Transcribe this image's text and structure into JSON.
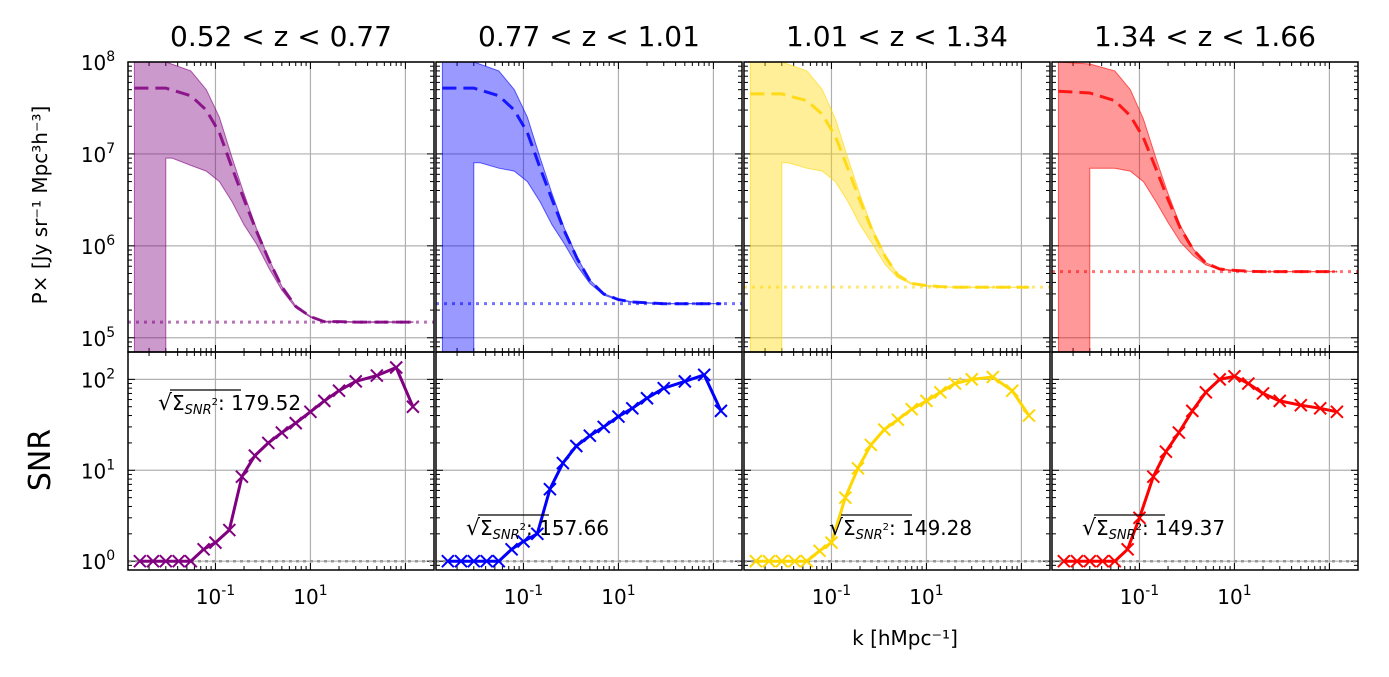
{
  "figure": {
    "ylabel_top": "P× [Jy sr⁻¹ Mpc³h⁻³]",
    "ylabel_bottom": "SNR",
    "xlabel": "k [hMpc⁻¹]"
  },
  "chart_data": [
    {
      "type": "line",
      "panel": "power-spectrum",
      "title": "0.52 < z < 0.77",
      "color": "#800080",
      "xscale": "log",
      "yscale": "log",
      "xlim": [
        0.012,
        20
      ],
      "ylim": [
        70000,
        100000000
      ],
      "x_tick_labels": [
        "10^-1",
        "10^1"
      ],
      "y_tick_labels": [
        "10^5",
        "10^6",
        "10^7",
        "10^8"
      ],
      "grid": true,
      "series": [
        {
          "role": "model-dashed",
          "x": [
            0.014,
            0.03,
            0.055,
            0.08,
            0.11,
            0.15,
            0.2,
            0.27,
            0.37,
            0.5,
            0.7,
            1.0,
            1.4,
            2.0,
            3.0,
            5.0,
            8.0,
            12.0
          ],
          "y": [
            52000000,
            52000000,
            43000000,
            30000000,
            17000000,
            7000000,
            3200000,
            1450000,
            680000,
            360000,
            220000,
            170000,
            150000,
            150000,
            148000,
            148000,
            148000,
            148000
          ]
        },
        {
          "role": "band-upper",
          "x": [
            0.014,
            0.03,
            0.055,
            0.08,
            0.11,
            0.15,
            0.2,
            0.27,
            0.37,
            0.5,
            0.7,
            1.0,
            1.4,
            2.0,
            3.0,
            5.0,
            8.0,
            12.0
          ],
          "y": [
            100000000,
            100000000,
            80000000,
            50000000,
            25000000,
            9000000,
            3700000,
            1550000,
            700000,
            365000,
            222000,
            171000,
            151000,
            151000,
            149000,
            149000,
            149000,
            149000
          ]
        },
        {
          "role": "band-lower",
          "x": [
            0.014,
            0.03,
            0.03,
            0.035,
            0.055,
            0.08,
            0.11,
            0.15,
            0.2,
            0.27,
            0.37,
            0.5,
            0.7,
            1.0,
            1.4,
            2.0,
            3.0,
            5.0,
            8.0,
            12.0
          ],
          "y": [
            70000,
            70000,
            9000000,
            9000000,
            7500000,
            6500000,
            5000000,
            3000000,
            1700000,
            1050000,
            560000,
            330000,
            212000,
            167000,
            148000,
            148000,
            147000,
            147000,
            147000,
            147000
          ]
        },
        {
          "role": "noise-dotted",
          "x": [
            0.014,
            12.0
          ],
          "y": [
            148000,
            148000
          ]
        }
      ]
    },
    {
      "type": "line",
      "panel": "power-spectrum",
      "title": "0.77 < z < 1.01",
      "color": "#0000FF",
      "xscale": "log",
      "yscale": "log",
      "xlim": [
        0.012,
        20
      ],
      "ylim": [
        70000,
        100000000
      ],
      "x_tick_labels": [
        "10^-1",
        "10^1"
      ],
      "grid": true,
      "series": [
        {
          "role": "model-dashed",
          "x": [
            0.014,
            0.03,
            0.055,
            0.08,
            0.11,
            0.15,
            0.2,
            0.27,
            0.37,
            0.5,
            0.7,
            1.0,
            1.4,
            2.0,
            3.0,
            5.0,
            8.0,
            12.0
          ],
          "y": [
            52000000,
            52000000,
            43000000,
            30000000,
            17000000,
            7000000,
            3200000,
            1450000,
            720000,
            420000,
            300000,
            260000,
            245000,
            240000,
            235000,
            235000,
            235000,
            235000
          ]
        },
        {
          "role": "band-upper",
          "x": [
            0.014,
            0.03,
            0.055,
            0.08,
            0.11,
            0.15,
            0.2,
            0.27,
            0.37,
            0.5,
            0.7,
            1.0,
            1.4,
            2.0,
            3.0,
            5.0,
            8.0,
            12.0
          ],
          "y": [
            100000000,
            100000000,
            80000000,
            50000000,
            25000000,
            9000000,
            3700000,
            1550000,
            740000,
            425000,
            302000,
            262000,
            246000,
            241000,
            236000,
            236000,
            236000,
            236000
          ]
        },
        {
          "role": "band-lower",
          "x": [
            0.014,
            0.03,
            0.03,
            0.035,
            0.055,
            0.08,
            0.11,
            0.15,
            0.2,
            0.27,
            0.37,
            0.5,
            0.7,
            1.0,
            1.4,
            2.0,
            3.0,
            5.0,
            8.0,
            12.0
          ],
          "y": [
            70000,
            70000,
            8000000,
            8000000,
            7000000,
            6500000,
            5000000,
            3000000,
            1700000,
            1050000,
            600000,
            390000,
            292000,
            256000,
            243000,
            238000,
            234000,
            234000,
            234000,
            234000
          ]
        },
        {
          "role": "noise-dotted",
          "x": [
            0.014,
            12.0
          ],
          "y": [
            235000,
            235000
          ]
        }
      ]
    },
    {
      "type": "line",
      "panel": "power-spectrum",
      "title": "1.01 < z < 1.34",
      "color": "#FFD700",
      "xscale": "log",
      "yscale": "log",
      "xlim": [
        0.012,
        20
      ],
      "ylim": [
        70000,
        100000000
      ],
      "x_tick_labels": [
        "10^-1",
        "10^1"
      ],
      "grid": true,
      "series": [
        {
          "role": "model-dashed",
          "x": [
            0.014,
            0.03,
            0.055,
            0.08,
            0.11,
            0.15,
            0.2,
            0.27,
            0.37,
            0.5,
            0.7,
            1.0,
            1.4,
            2.0,
            3.0,
            5.0,
            8.0,
            12.0
          ],
          "y": [
            45000000,
            45000000,
            38000000,
            27000000,
            15500000,
            6800000,
            3100000,
            1450000,
            760000,
            480000,
            390000,
            370000,
            360000,
            355000,
            355000,
            355000,
            355000,
            355000
          ]
        },
        {
          "role": "band-upper",
          "x": [
            0.014,
            0.03,
            0.055,
            0.08,
            0.11,
            0.15,
            0.2,
            0.27,
            0.37,
            0.5,
            0.7,
            1.0,
            1.4,
            2.0,
            3.0,
            5.0,
            8.0,
            12.0
          ],
          "y": [
            100000000,
            100000000,
            80000000,
            50000000,
            24000000,
            8800000,
            3600000,
            1550000,
            780000,
            485000,
            392000,
            372000,
            361000,
            356000,
            356000,
            356000,
            356000,
            356000
          ]
        },
        {
          "role": "band-lower",
          "x": [
            0.014,
            0.03,
            0.03,
            0.035,
            0.055,
            0.08,
            0.11,
            0.15,
            0.2,
            0.27,
            0.37,
            0.5,
            0.7,
            1.0,
            1.4,
            2.0,
            3.0,
            5.0,
            8.0,
            12.0
          ],
          "y": [
            70000,
            70000,
            8000000,
            8000000,
            7000000,
            6500000,
            5000000,
            3000000,
            1700000,
            1050000,
            620000,
            450000,
            382000,
            366000,
            358000,
            353000,
            353000,
            353000,
            353000,
            353000
          ]
        },
        {
          "role": "noise-dotted",
          "x": [
            0.014,
            12.0
          ],
          "y": [
            355000,
            355000
          ]
        }
      ]
    },
    {
      "type": "line",
      "panel": "power-spectrum",
      "title": "1.34 < z < 1.66",
      "color": "#FF0000",
      "xscale": "log",
      "yscale": "log",
      "xlim": [
        0.012,
        20
      ],
      "ylim": [
        70000,
        100000000
      ],
      "x_tick_labels": [
        "10^-1",
        "10^1"
      ],
      "grid": true,
      "series": [
        {
          "role": "model-dashed",
          "x": [
            0.014,
            0.03,
            0.055,
            0.08,
            0.11,
            0.15,
            0.2,
            0.27,
            0.37,
            0.5,
            0.7,
            1.0,
            1.4,
            2.0,
            3.0,
            5.0,
            8.0,
            12.0
          ],
          "y": [
            48000000,
            46000000,
            38000000,
            26000000,
            15000000,
            6800000,
            3200000,
            1550000,
            900000,
            650000,
            560000,
            540000,
            530000,
            525000,
            525000,
            525000,
            525000,
            525000
          ]
        },
        {
          "role": "band-upper",
          "x": [
            0.014,
            0.03,
            0.055,
            0.08,
            0.11,
            0.15,
            0.2,
            0.27,
            0.37,
            0.5,
            0.7,
            1.0,
            1.4,
            2.0,
            3.0,
            5.0,
            8.0,
            12.0
          ],
          "y": [
            100000000,
            95000000,
            80000000,
            50000000,
            24000000,
            8800000,
            3700000,
            1650000,
            920000,
            655000,
            562000,
            542000,
            531000,
            526000,
            526000,
            526000,
            526000,
            526000
          ]
        },
        {
          "role": "band-lower",
          "x": [
            0.014,
            0.03,
            0.03,
            0.035,
            0.055,
            0.08,
            0.11,
            0.15,
            0.2,
            0.27,
            0.37,
            0.5,
            0.7,
            1.0,
            1.4,
            2.0,
            3.0,
            5.0,
            8.0,
            12.0
          ],
          "y": [
            70000,
            70000,
            7000000,
            7000000,
            7000000,
            6500000,
            5000000,
            3000000,
            1800000,
            1100000,
            780000,
            620000,
            552000,
            536000,
            528000,
            523000,
            523000,
            523000,
            523000,
            523000
          ]
        },
        {
          "role": "noise-dotted",
          "x": [
            0.014,
            12.0
          ],
          "y": [
            525000,
            525000
          ]
        }
      ]
    },
    {
      "type": "line",
      "panel": "snr",
      "color": "#800080",
      "xscale": "log",
      "yscale": "log",
      "xlim": [
        0.012,
        20
      ],
      "ylim": [
        0.8,
        200
      ],
      "x_tick_labels": [
        "10^-1",
        "10^1"
      ],
      "y_tick_labels": [
        "10^0",
        "10^1",
        "10^2"
      ],
      "grid": true,
      "annotation": "√Σ_SNR²: 179.52",
      "reference_line": 1.0,
      "x": [
        0.016,
        0.022,
        0.03,
        0.041,
        0.055,
        0.075,
        0.1,
        0.14,
        0.19,
        0.26,
        0.36,
        0.5,
        0.7,
        1.0,
        1.4,
        2.0,
        3.0,
        5.0,
        8.0,
        12.0
      ],
      "y": [
        1.0,
        1.0,
        1.0,
        1.0,
        1.0,
        1.35,
        1.6,
        2.2,
        8.5,
        14.5,
        20,
        26,
        33,
        44,
        58,
        75,
        95,
        110,
        135,
        50
      ]
    },
    {
      "type": "line",
      "panel": "snr",
      "color": "#0000FF",
      "xscale": "log",
      "yscale": "log",
      "xlim": [
        0.012,
        20
      ],
      "ylim": [
        0.8,
        200
      ],
      "x_tick_labels": [
        "10^-1",
        "10^1"
      ],
      "grid": true,
      "annotation": "√Σ_SNR²: 157.66",
      "reference_line": 1.0,
      "x": [
        0.016,
        0.022,
        0.03,
        0.041,
        0.055,
        0.075,
        0.1,
        0.14,
        0.19,
        0.26,
        0.36,
        0.5,
        0.7,
        1.0,
        1.4,
        2.0,
        3.0,
        5.0,
        8.0,
        12.0
      ],
      "y": [
        1.0,
        1.0,
        1.0,
        1.0,
        1.0,
        1.35,
        1.65,
        2.0,
        6.2,
        12,
        18.5,
        24,
        30,
        39,
        48,
        62,
        80,
        95,
        112,
        45
      ]
    },
    {
      "type": "line",
      "panel": "snr",
      "color": "#FFD700",
      "xscale": "log",
      "yscale": "log",
      "xlim": [
        0.012,
        20
      ],
      "ylim": [
        0.8,
        200
      ],
      "x_tick_labels": [
        "10^-1",
        "10^1"
      ],
      "grid": true,
      "annotation": "√Σ_SNR²: 149.28",
      "reference_line": 1.0,
      "x": [
        0.016,
        0.022,
        0.03,
        0.041,
        0.055,
        0.075,
        0.1,
        0.14,
        0.19,
        0.26,
        0.36,
        0.5,
        0.7,
        1.0,
        1.4,
        2.0,
        3.0,
        5.0,
        8.0,
        12.0
      ],
      "y": [
        1.0,
        1.0,
        1.0,
        1.0,
        1.0,
        1.3,
        1.6,
        5.0,
        10.5,
        19,
        28,
        36,
        47,
        58,
        72,
        90,
        100,
        106,
        75,
        40
      ]
    },
    {
      "type": "line",
      "panel": "snr",
      "color": "#FF0000",
      "xscale": "log",
      "yscale": "log",
      "xlim": [
        0.012,
        20
      ],
      "ylim": [
        0.8,
        200
      ],
      "x_tick_labels": [
        "10^-1",
        "10^1"
      ],
      "grid": true,
      "annotation": "√Σ_SNR²: 149.37",
      "reference_line": 1.0,
      "x": [
        0.016,
        0.022,
        0.03,
        0.041,
        0.055,
        0.075,
        0.1,
        0.14,
        0.19,
        0.26,
        0.36,
        0.5,
        0.7,
        1.0,
        1.4,
        2.0,
        3.0,
        5.0,
        8.0,
        12.0
      ],
      "y": [
        1.0,
        1.0,
        1.0,
        1.0,
        1.0,
        1.35,
        3.0,
        8.5,
        16,
        26,
        45,
        72,
        100,
        108,
        90,
        70,
        58,
        52,
        48,
        44
      ]
    }
  ]
}
